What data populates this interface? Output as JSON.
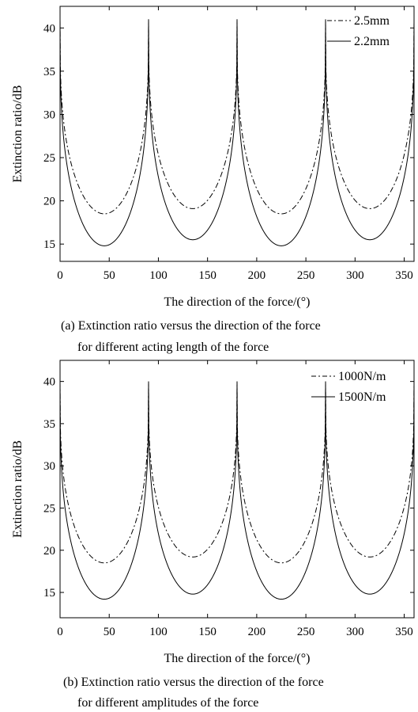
{
  "chart_data": [
    {
      "type": "line",
      "xlabel": "The direction of the force/(°)",
      "ylabel": "Extinction ratio/dB",
      "xlim": [
        0,
        360
      ],
      "ylim": [
        13,
        42.5
      ],
      "xticks": [
        0,
        50,
        100,
        150,
        200,
        250,
        300,
        350
      ],
      "yticks": [
        15,
        20,
        25,
        30,
        35,
        40
      ],
      "grid": false,
      "legend_position": "top-right",
      "caption_line1": "(a)  Extinction ratio versus the direction of the force",
      "caption_line2": "for different acting length of the force",
      "series": [
        {
          "name": "2.5mm",
          "style": "dashdot",
          "min": 18.5,
          "peak": 41,
          "min_angles": [
            45,
            135,
            225,
            315
          ],
          "min_values": [
            18.5,
            19.1,
            18.5,
            19.1
          ]
        },
        {
          "name": "2.2mm",
          "style": "solid",
          "min": 14.8,
          "peak": 41,
          "min_angles": [
            45,
            135,
            225,
            315
          ],
          "min_values": [
            14.8,
            15.5,
            14.8,
            15.5
          ]
        }
      ]
    },
    {
      "type": "line",
      "xlabel": "The direction of the force/(°)",
      "ylabel": "Extinction ratio/dB",
      "xlim": [
        0,
        360
      ],
      "ylim": [
        12,
        42.5
      ],
      "xticks": [
        0,
        50,
        100,
        150,
        200,
        250,
        300,
        350
      ],
      "yticks": [
        15,
        20,
        25,
        30,
        35,
        40
      ],
      "grid": false,
      "legend_position": "top-right",
      "caption_line1": "(b)  Extinction ratio versus the direction of the force",
      "caption_line2": "for different amplitudes of the force",
      "series": [
        {
          "name": "1000N/m",
          "style": "dashdot",
          "min": 18.5,
          "peak": 40,
          "min_angles": [
            45,
            135,
            225,
            315
          ],
          "min_values": [
            18.5,
            19.2,
            18.5,
            19.2
          ]
        },
        {
          "name": "1500N/m",
          "style": "solid",
          "min": 14.2,
          "peak": 40,
          "min_angles": [
            45,
            135,
            225,
            315
          ],
          "min_values": [
            14.2,
            14.8,
            14.2,
            14.8
          ]
        }
      ]
    }
  ]
}
